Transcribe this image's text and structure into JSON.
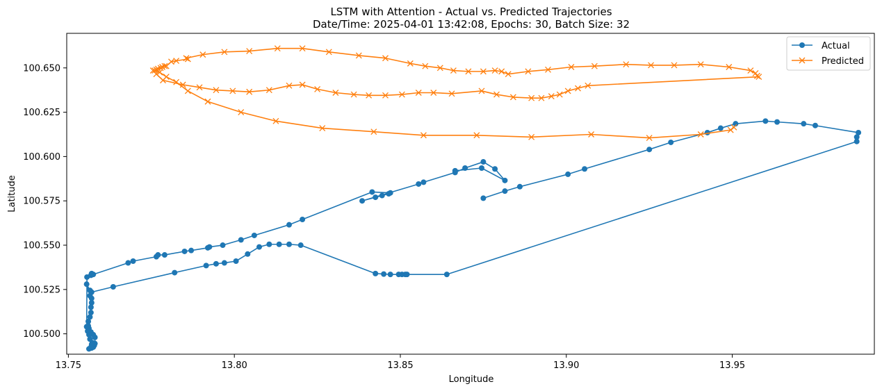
{
  "chart_data": {
    "type": "line",
    "title": "LSTM with Attention - Actual vs. Predicted Trajectories",
    "subtitle": "Date/Time: 2025-04-01 13:42:08, Epochs: 30, Batch Size: 32",
    "xlabel": "Longitude",
    "ylabel": "Latitude",
    "xlim": [
      13.7495,
      13.9928
    ],
    "ylim": [
      100.4885,
      100.6695
    ],
    "x_ticks": [
      13.75,
      13.8,
      13.85,
      13.9,
      13.95
    ],
    "x_tick_labels": [
      "13.75",
      "13.80",
      "13.85",
      "13.90",
      "13.95"
    ],
    "y_ticks": [
      100.5,
      100.525,
      100.55,
      100.575,
      100.6,
      100.625,
      100.65
    ],
    "y_tick_labels": [
      "100.500",
      "100.525",
      "100.550",
      "100.575",
      "100.600",
      "100.625",
      "100.650"
    ],
    "grid": false,
    "legend_position": "top-right",
    "series": [
      {
        "name": "Actual",
        "color": "#1f77b4",
        "marker": "circle",
        "points": [
          [
            13.875,
            100.5765
          ],
          [
            13.8815,
            100.5805
          ],
          [
            13.886,
            100.583
          ],
          [
            13.9005,
            100.59
          ],
          [
            13.9055,
            100.593
          ],
          [
            13.925,
            100.604
          ],
          [
            13.9315,
            100.608
          ],
          [
            13.9425,
            100.6135
          ],
          [
            13.9465,
            100.616
          ],
          [
            13.951,
            100.6185
          ],
          [
            13.96,
            100.62
          ],
          [
            13.9635,
            100.6195
          ],
          [
            13.9715,
            100.6185
          ],
          [
            13.975,
            100.6175
          ],
          [
            13.988,
            100.6135
          ],
          [
            13.9875,
            100.611
          ],
          [
            13.9875,
            100.6085
          ],
          [
            13.864,
            100.5335
          ],
          [
            13.852,
            100.5335
          ],
          [
            13.8515,
            100.5335
          ],
          [
            13.8505,
            100.5335
          ],
          [
            13.8495,
            100.5335
          ],
          [
            13.847,
            100.5335
          ],
          [
            13.845,
            100.5337
          ],
          [
            13.8425,
            100.534
          ],
          [
            13.82,
            100.55
          ],
          [
            13.8165,
            100.5505
          ],
          [
            13.8135,
            100.5505
          ],
          [
            13.8105,
            100.5505
          ],
          [
            13.8075,
            100.549
          ],
          [
            13.804,
            100.545
          ],
          [
            13.8005,
            100.541
          ],
          [
            13.797,
            100.54
          ],
          [
            13.7945,
            100.5395
          ],
          [
            13.7915,
            100.5385
          ],
          [
            13.782,
            100.5345
          ],
          [
            13.7635,
            100.5265
          ],
          [
            13.757,
            100.5235
          ],
          [
            13.7565,
            100.5245
          ],
          [
            13.7555,
            100.528
          ],
          [
            13.7565,
            100.5215
          ],
          [
            13.757,
            100.52
          ],
          [
            13.757,
            100.5175
          ],
          [
            13.7568,
            100.515
          ],
          [
            13.7568,
            100.512
          ],
          [
            13.7565,
            100.5095
          ],
          [
            13.756,
            100.507
          ],
          [
            13.756,
            100.5045
          ],
          [
            13.7562,
            100.503
          ],
          [
            13.7568,
            100.501
          ],
          [
            13.7575,
            100.4995
          ],
          [
            13.758,
            100.498
          ],
          [
            13.758,
            100.4945
          ],
          [
            13.7578,
            100.4935
          ],
          [
            13.7575,
            100.4925
          ],
          [
            13.757,
            100.492
          ],
          [
            13.7562,
            100.4915
          ],
          [
            13.7568,
            100.4925
          ],
          [
            13.757,
            100.494
          ],
          [
            13.7572,
            100.495
          ],
          [
            13.7565,
            100.497
          ],
          [
            13.7562,
            100.4995
          ],
          [
            13.7558,
            100.5015
          ],
          [
            13.7555,
            100.504
          ],
          [
            13.7556,
            100.532
          ],
          [
            13.7568,
            100.533
          ],
          [
            13.757,
            100.534
          ],
          [
            13.7575,
            100.5335
          ],
          [
            13.768,
            100.54
          ],
          [
            13.7695,
            100.541
          ],
          [
            13.7765,
            100.5435
          ],
          [
            13.777,
            100.5445
          ],
          [
            13.779,
            100.5445
          ],
          [
            13.785,
            100.5465
          ],
          [
            13.787,
            100.547
          ],
          [
            13.792,
            100.5485
          ],
          [
            13.7925,
            100.549
          ],
          [
            13.7965,
            100.55
          ],
          [
            13.802,
            100.553
          ],
          [
            13.806,
            100.5555
          ],
          [
            13.8165,
            100.5615
          ],
          [
            13.8205,
            100.5645
          ],
          [
            13.8415,
            100.58
          ],
          [
            13.847,
            100.5795
          ],
          [
            13.8465,
            100.579
          ],
          [
            13.8445,
            100.578
          ],
          [
            13.8425,
            100.577
          ],
          [
            13.8385,
            100.575
          ],
          [
            13.8555,
            100.5845
          ],
          [
            13.857,
            100.5855
          ],
          [
            13.8665,
            100.591
          ],
          [
            13.8695,
            100.5935
          ],
          [
            13.875,
            100.597
          ],
          [
            13.8785,
            100.593
          ],
          [
            13.8815,
            100.5865
          ],
          [
            13.8745,
            100.5935
          ],
          [
            13.8665,
            100.592
          ]
        ]
      },
      {
        "name": "Predicted",
        "color": "#ff7f0e",
        "marker": "x",
        "points": [
          [
            13.9505,
            100.6165
          ],
          [
            13.9495,
            100.615
          ],
          [
            13.9405,
            100.6125
          ],
          [
            13.925,
            100.6105
          ],
          [
            13.9075,
            100.6125
          ],
          [
            13.8895,
            100.611
          ],
          [
            13.873,
            100.612
          ],
          [
            13.857,
            100.612
          ],
          [
            13.842,
            100.614
          ],
          [
            13.8265,
            100.616
          ],
          [
            13.8125,
            100.62
          ],
          [
            13.802,
            100.625
          ],
          [
            13.792,
            100.631
          ],
          [
            13.786,
            100.637
          ],
          [
            13.7825,
            100.642
          ],
          [
            13.7795,
            100.645
          ],
          [
            13.7775,
            100.6475
          ],
          [
            13.776,
            100.6485
          ],
          [
            13.7765,
            100.649
          ],
          [
            13.777,
            100.6495
          ],
          [
            13.7778,
            100.65
          ],
          [
            13.7783,
            100.6505
          ],
          [
            13.779,
            100.651
          ],
          [
            13.7795,
            100.651
          ],
          [
            13.781,
            100.6535
          ],
          [
            13.7825,
            100.654
          ],
          [
            13.786,
            100.655
          ],
          [
            13.7855,
            100.6555
          ],
          [
            13.7905,
            100.6575
          ],
          [
            13.797,
            100.659
          ],
          [
            13.8045,
            100.6595
          ],
          [
            13.813,
            100.661
          ],
          [
            13.8205,
            100.661
          ],
          [
            13.8285,
            100.659
          ],
          [
            13.8375,
            100.657
          ],
          [
            13.8455,
            100.6555
          ],
          [
            13.853,
            100.6525
          ],
          [
            13.8575,
            100.651
          ],
          [
            13.862,
            100.65
          ],
          [
            13.866,
            100.6485
          ],
          [
            13.8705,
            100.648
          ],
          [
            13.875,
            100.648
          ],
          [
            13.8785,
            100.6485
          ],
          [
            13.8805,
            100.648
          ],
          [
            13.8825,
            100.6465
          ],
          [
            13.8885,
            100.648
          ],
          [
            13.8945,
            100.649
          ],
          [
            13.9015,
            100.6505
          ],
          [
            13.9085,
            100.651
          ],
          [
            13.918,
            100.652
          ],
          [
            13.9255,
            100.6515
          ],
          [
            13.9325,
            100.6515
          ],
          [
            13.9405,
            100.652
          ],
          [
            13.949,
            100.6505
          ],
          [
            13.9555,
            100.6485
          ],
          [
            13.957,
            100.647
          ],
          [
            13.9575,
            100.6455
          ],
          [
            13.958,
            100.645
          ],
          [
            13.9065,
            100.64
          ],
          [
            13.9035,
            100.6385
          ],
          [
            13.9005,
            100.637
          ],
          [
            13.898,
            100.635
          ],
          [
            13.8955,
            100.634
          ],
          [
            13.8925,
            100.633
          ],
          [
            13.8895,
            100.633
          ],
          [
            13.884,
            100.6335
          ],
          [
            13.879,
            100.635
          ],
          [
            13.8745,
            100.637
          ],
          [
            13.8655,
            100.6355
          ],
          [
            13.86,
            100.636
          ],
          [
            13.8555,
            100.636
          ],
          [
            13.8505,
            100.635
          ],
          [
            13.8455,
            100.6345
          ],
          [
            13.8405,
            100.6345
          ],
          [
            13.836,
            100.635
          ],
          [
            13.8305,
            100.636
          ],
          [
            13.825,
            100.638
          ],
          [
            13.8205,
            100.6405
          ],
          [
            13.8165,
            100.64
          ],
          [
            13.8105,
            100.6375
          ],
          [
            13.8045,
            100.6365
          ],
          [
            13.7995,
            100.637
          ],
          [
            13.7945,
            100.6375
          ],
          [
            13.7895,
            100.639
          ],
          [
            13.7845,
            100.6405
          ],
          [
            13.7785,
            100.643
          ],
          [
            13.7765,
            100.6465
          ],
          [
            13.7755,
            100.6485
          ]
        ]
      }
    ]
  }
}
